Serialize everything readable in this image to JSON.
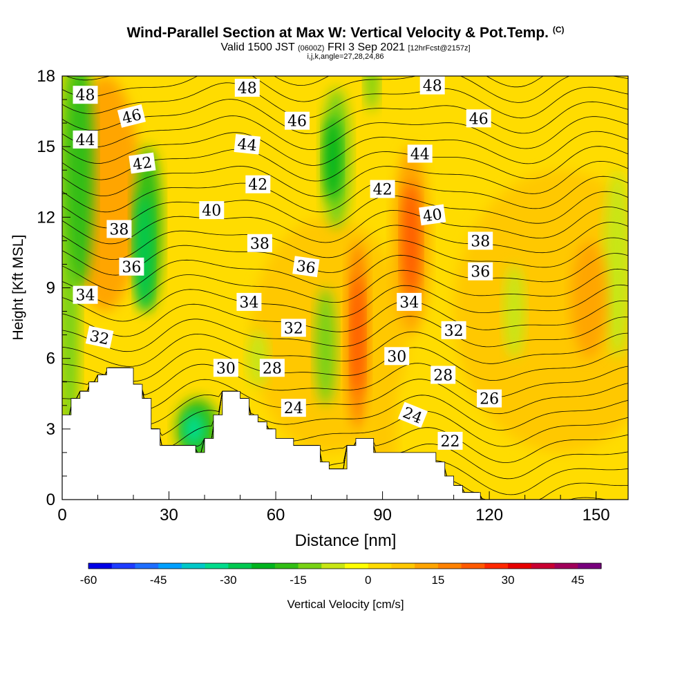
{
  "title": {
    "main": "Wind-Parallel Section at Max W: Vertical Velocity & Pot.Temp.",
    "copyright": "(C)",
    "valid_prefix": "Valid 1500 JST",
    "utc": "(0600Z)",
    "valid_date": "FRI 3 Sep 2021",
    "forecast": "[12hrFcst@2157z]",
    "indices": "i,j,k,angle=27,28,24,86"
  },
  "chart_data": {
    "type": "heatmap",
    "xlabel": "Distance [nm]",
    "ylabel": "Height [Kft MSL]",
    "xlim": [
      0,
      159
    ],
    "ylim": [
      0,
      18
    ],
    "x_ticks": [
      0,
      30,
      60,
      90,
      120,
      150
    ],
    "y_ticks": [
      0,
      3,
      6,
      9,
      12,
      15,
      18
    ],
    "colorbar": {
      "label": "Vertical Velocity [cm/s]",
      "ticks": [
        -60,
        -45,
        -30,
        -15,
        0,
        15,
        30,
        45
      ],
      "range": [
        -60,
        50
      ],
      "step": 5,
      "colors": [
        "#0000e6",
        "#1e3cff",
        "#1e6eff",
        "#00a0ff",
        "#00c8c8",
        "#00dc8c",
        "#00c850",
        "#00b41e",
        "#32be14",
        "#78d214",
        "#c8e614",
        "#ffff00",
        "#ffdc00",
        "#ffc800",
        "#ffa500",
        "#ff8200",
        "#ff5a00",
        "#ff2800",
        "#e60000",
        "#c80032",
        "#a0005a",
        "#78007d"
      ]
    },
    "terrain_kft": [
      [
        0,
        3.6
      ],
      [
        2.5,
        3.6
      ],
      [
        2.5,
        4.3
      ],
      [
        5,
        4.3
      ],
      [
        5,
        4.6
      ],
      [
        7.5,
        4.6
      ],
      [
        7.5,
        5.0
      ],
      [
        10,
        5.0
      ],
      [
        10,
        5.3
      ],
      [
        12.5,
        5.3
      ],
      [
        12.5,
        5.6
      ],
      [
        20,
        5.6
      ],
      [
        20,
        4.9
      ],
      [
        22.5,
        4.9
      ],
      [
        22.5,
        4.3
      ],
      [
        25,
        4.3
      ],
      [
        25,
        3.0
      ],
      [
        27.5,
        3.0
      ],
      [
        27.5,
        2.3
      ],
      [
        37.5,
        2.3
      ],
      [
        37.5,
        2.0
      ],
      [
        40,
        2.0
      ],
      [
        40,
        2.6
      ],
      [
        42.5,
        2.6
      ],
      [
        42.5,
        3.6
      ],
      [
        45,
        3.6
      ],
      [
        45,
        4.6
      ],
      [
        50,
        4.6
      ],
      [
        50,
        4.3
      ],
      [
        52.5,
        4.3
      ],
      [
        52.5,
        3.6
      ],
      [
        55,
        3.6
      ],
      [
        55,
        3.3
      ],
      [
        57.5,
        3.3
      ],
      [
        57.5,
        3.0
      ],
      [
        60,
        3.0
      ],
      [
        60,
        2.6
      ],
      [
        65,
        2.6
      ],
      [
        65,
        2.3
      ],
      [
        72.5,
        2.3
      ],
      [
        72.5,
        1.6
      ],
      [
        75,
        1.6
      ],
      [
        75,
        1.3
      ],
      [
        80,
        1.3
      ],
      [
        80,
        2.3
      ],
      [
        82.5,
        2.3
      ],
      [
        82.5,
        2.6
      ],
      [
        87.5,
        2.6
      ],
      [
        87.5,
        2.0
      ],
      [
        105,
        2.0
      ],
      [
        105,
        1.6
      ],
      [
        107.5,
        1.6
      ],
      [
        107.5,
        1.0
      ],
      [
        110,
        1.0
      ],
      [
        110,
        0.6
      ],
      [
        112.5,
        0.6
      ],
      [
        112.5,
        0.3
      ],
      [
        117.5,
        0.3
      ],
      [
        117.5,
        0.0
      ],
      [
        159,
        0.0
      ]
    ],
    "theta_contour_labels": [
      {
        "text": "48",
        "x": 6.5,
        "y": 17.2,
        "angle": 0
      },
      {
        "text": "46",
        "x": 19.5,
        "y": 16.3,
        "angle": -14
      },
      {
        "text": "44",
        "x": 6.5,
        "y": 15.3,
        "angle": 0
      },
      {
        "text": "42",
        "x": 22.5,
        "y": 14.3,
        "angle": -8
      },
      {
        "text": "40",
        "x": 42,
        "y": 12.3,
        "angle": 0
      },
      {
        "text": "38",
        "x": 16,
        "y": 11.5,
        "angle": 0
      },
      {
        "text": "36",
        "x": 19.5,
        "y": 9.9,
        "angle": 0
      },
      {
        "text": "34",
        "x": 6.5,
        "y": 8.7,
        "angle": 0
      },
      {
        "text": "32",
        "x": 10.5,
        "y": 6.9,
        "angle": 12
      },
      {
        "text": "48",
        "x": 52,
        "y": 17.5,
        "angle": 0
      },
      {
        "text": "46",
        "x": 66,
        "y": 16.1,
        "angle": 0
      },
      {
        "text": "44",
        "x": 52,
        "y": 15.1,
        "angle": 6
      },
      {
        "text": "42",
        "x": 55,
        "y": 13.4,
        "angle": 0
      },
      {
        "text": "38",
        "x": 55.5,
        "y": 10.9,
        "angle": 0
      },
      {
        "text": "36",
        "x": 68.5,
        "y": 9.9,
        "angle": 8
      },
      {
        "text": "34",
        "x": 52.5,
        "y": 8.4,
        "angle": 0
      },
      {
        "text": "32",
        "x": 65,
        "y": 7.3,
        "angle": 0
      },
      {
        "text": "30",
        "x": 46,
        "y": 5.6,
        "angle": 0
      },
      {
        "text": "28",
        "x": 59,
        "y": 5.6,
        "angle": 0
      },
      {
        "text": "24",
        "x": 65,
        "y": 3.9,
        "angle": 0
      },
      {
        "text": "48",
        "x": 104,
        "y": 17.6,
        "angle": 0
      },
      {
        "text": "46",
        "x": 117,
        "y": 16.2,
        "angle": 0
      },
      {
        "text": "44",
        "x": 100.5,
        "y": 14.7,
        "angle": 0
      },
      {
        "text": "42",
        "x": 90,
        "y": 13.2,
        "angle": 0
      },
      {
        "text": "40",
        "x": 104,
        "y": 12.1,
        "angle": -8
      },
      {
        "text": "38",
        "x": 117.5,
        "y": 11.0,
        "angle": 0
      },
      {
        "text": "36",
        "x": 117.5,
        "y": 9.7,
        "angle": 0
      },
      {
        "text": "34",
        "x": 97.5,
        "y": 8.4,
        "angle": 0
      },
      {
        "text": "32",
        "x": 110,
        "y": 7.2,
        "angle": 0
      },
      {
        "text": "30",
        "x": 94,
        "y": 6.1,
        "angle": 0
      },
      {
        "text": "28",
        "x": 107,
        "y": 5.3,
        "angle": 0
      },
      {
        "text": "26",
        "x": 120,
        "y": 4.3,
        "angle": 0
      },
      {
        "text": "24",
        "x": 98.5,
        "y": 3.6,
        "angle": 22
      },
      {
        "text": "22",
        "x": 109,
        "y": 2.5,
        "angle": 0
      }
    ],
    "theta_contour_levels": [
      18,
      19,
      20,
      21,
      22,
      23,
      24,
      25,
      26,
      27,
      28,
      29,
      30,
      31,
      32,
      33,
      34,
      35,
      36,
      37,
      38,
      39,
      40,
      41,
      42,
      43,
      44,
      45,
      46,
      47,
      48,
      49
    ]
  }
}
